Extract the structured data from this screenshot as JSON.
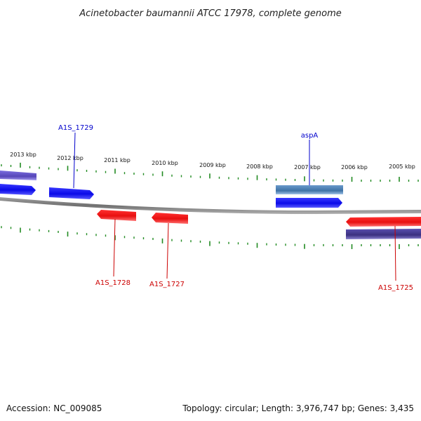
{
  "header": {
    "title": "Acinetobacter baumannii ATCC 17978, complete genome"
  },
  "footer": {
    "accession": "Accession: NC_009085",
    "summary": "Topology: circular; Length: 3,976,747 bp; Genes: 3,435"
  },
  "scale": {
    "tick_labels": [
      "2013 kbp",
      "2012 kbp",
      "2011 kbp",
      "2010 kbp",
      "2009 kbp",
      "2008 kbp",
      "2007 kbp",
      "2006 kbp",
      "2005 kbp"
    ]
  },
  "gene_labels": [
    {
      "id": "A1S_1729",
      "text": "A1S_1729",
      "strand": "forward",
      "color": "#0000cc"
    },
    {
      "id": "aspA",
      "text": "aspA",
      "strand": "forward",
      "color": "#0000cc"
    },
    {
      "id": "A1S_1728",
      "text": "A1S_1728",
      "strand": "reverse",
      "color": "#cc0000"
    },
    {
      "id": "A1S_1727",
      "text": "A1S_1727",
      "strand": "reverse",
      "color": "#cc0000"
    },
    {
      "id": "A1S_1725",
      "text": "A1S_1725",
      "strand": "reverse",
      "color": "#cc0000"
    }
  ],
  "colors": {
    "forward_cds": "#1010ee",
    "reverse_cds": "#ee1010",
    "forward_feature": "#4a7fb5",
    "gene_track_forward": "#6a5acd",
    "gene_track_reverse": "#483d8b",
    "backbone": "#808080",
    "ticks": "#228b22"
  }
}
